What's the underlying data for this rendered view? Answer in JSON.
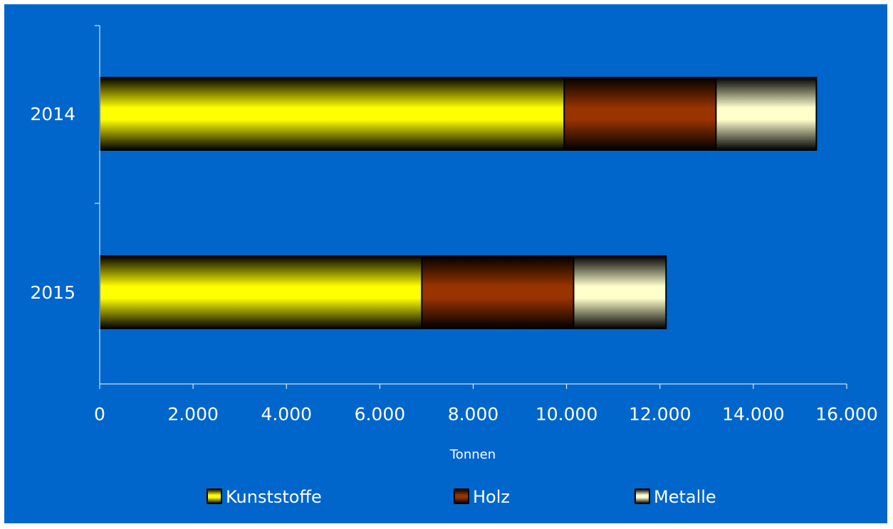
{
  "chart_data": {
    "type": "bar",
    "orientation": "horizontal",
    "stacked": true,
    "categories": [
      "2014",
      "2015"
    ],
    "series": [
      {
        "name": "Kunststoffe",
        "values": [
          9950,
          6900
        ],
        "color": "#ffff00"
      },
      {
        "name": "Holz",
        "values": [
          3250,
          3250
        ],
        "color": "#993300"
      },
      {
        "name": "Metalle",
        "values": [
          2150,
          1980
        ],
        "color": "#ffffcc"
      }
    ],
    "xlabel": "Tonnen",
    "xlim": [
      0,
      16000
    ],
    "x_ticks": [
      0,
      2000,
      4000,
      6000,
      8000,
      10000,
      12000,
      14000,
      16000
    ],
    "x_tick_labels": [
      "0",
      "2.000",
      "4.000",
      "6.000",
      "8.000",
      "10.000",
      "12.000",
      "14.000",
      "16.000"
    ],
    "grid": false,
    "legend": "bottom",
    "background_color": "#0066cc"
  }
}
